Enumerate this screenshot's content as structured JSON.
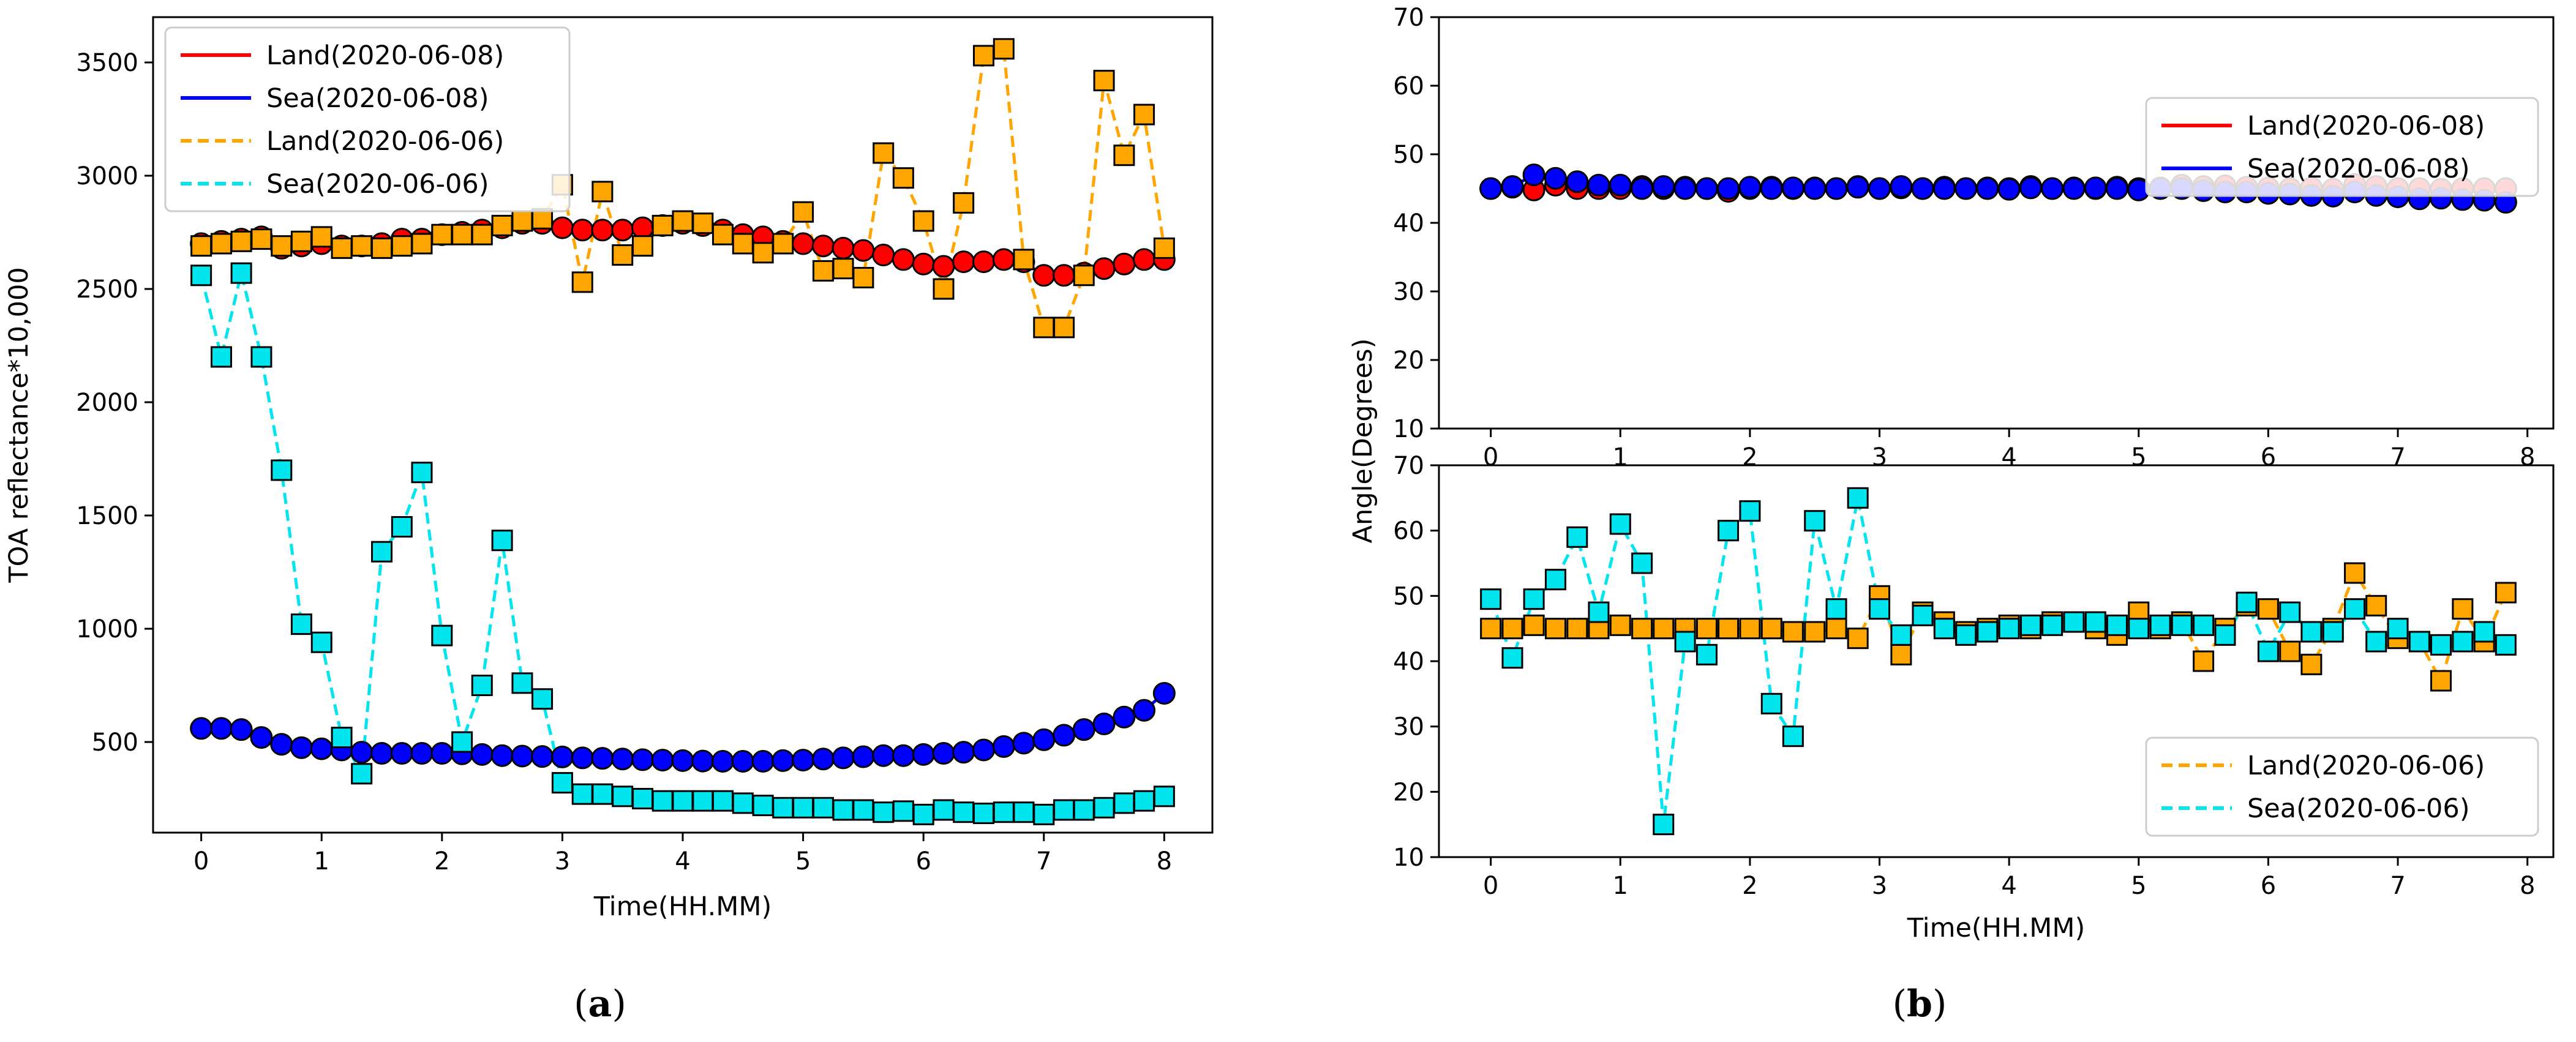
{
  "figure": {
    "caption_a": "(a)",
    "caption_b": "(b)",
    "caption_a_letter": "a",
    "caption_b_letter": "b"
  },
  "colors": {
    "land_0608": "#ff0000",
    "sea_0608": "#0000ff",
    "land_0606": "#ffa500",
    "sea_0606": "#00e5ee",
    "axis": "#000000"
  },
  "chart_data": [
    {
      "id": "a",
      "type": "line",
      "xlabel": "Time(HH.MM)",
      "ylabel": "TOA reflectance*10,000",
      "xlim": [
        -0.4,
        8.4
      ],
      "ylim": [
        100,
        3700
      ],
      "xticks": [
        0,
        1,
        2,
        3,
        4,
        5,
        6,
        7,
        8
      ],
      "yticks": [
        500,
        1000,
        1500,
        2000,
        2500,
        3000,
        3500
      ],
      "legend_position": "top-left",
      "series": [
        {
          "name": "Land(2020-06-08)",
          "color": "#ff0000",
          "dash": false,
          "marker": "circle",
          "x": [
            0,
            0.167,
            0.333,
            0.5,
            0.667,
            0.833,
            1,
            1.167,
            1.333,
            1.5,
            1.667,
            1.833,
            2,
            2.167,
            2.333,
            2.5,
            2.667,
            2.833,
            3,
            3.167,
            3.333,
            3.5,
            3.667,
            3.833,
            4,
            4.167,
            4.333,
            4.5,
            4.667,
            4.833,
            5,
            5.167,
            5.333,
            5.5,
            5.667,
            5.833,
            6,
            6.167,
            6.333,
            6.5,
            6.667,
            6.833,
            7,
            7.167,
            7.333,
            7.5,
            7.667,
            7.833,
            8
          ],
          "y": [
            2700,
            2710,
            2720,
            2730,
            2680,
            2690,
            2700,
            2690,
            2690,
            2700,
            2720,
            2720,
            2740,
            2750,
            2760,
            2770,
            2790,
            2790,
            2770,
            2760,
            2760,
            2760,
            2770,
            2780,
            2790,
            2780,
            2760,
            2740,
            2730,
            2710,
            2700,
            2690,
            2680,
            2670,
            2650,
            2630,
            2610,
            2600,
            2620,
            2620,
            2630,
            2620,
            2560,
            2560,
            2570,
            2590,
            2610,
            2630,
            2630
          ]
        },
        {
          "name": "Sea(2020-06-08)",
          "color": "#0000ff",
          "dash": false,
          "marker": "circle",
          "x": [
            0,
            0.167,
            0.333,
            0.5,
            0.667,
            0.833,
            1,
            1.167,
            1.333,
            1.5,
            1.667,
            1.833,
            2,
            2.167,
            2.333,
            2.5,
            2.667,
            2.833,
            3,
            3.167,
            3.333,
            3.5,
            3.667,
            3.833,
            4,
            4.167,
            4.333,
            4.5,
            4.667,
            4.833,
            5,
            5.167,
            5.333,
            5.5,
            5.667,
            5.833,
            6,
            6.167,
            6.333,
            6.5,
            6.667,
            6.833,
            7,
            7.167,
            7.333,
            7.5,
            7.667,
            7.833,
            8
          ],
          "y": [
            560,
            560,
            555,
            520,
            490,
            475,
            470,
            465,
            455,
            450,
            450,
            450,
            450,
            448,
            445,
            440,
            438,
            436,
            434,
            430,
            428,
            425,
            422,
            420,
            418,
            416,
            415,
            415,
            415,
            418,
            420,
            425,
            430,
            435,
            440,
            440,
            445,
            450,
            455,
            465,
            480,
            495,
            510,
            530,
            555,
            580,
            610,
            640,
            715
          ]
        },
        {
          "name": "Land(2020-06-06)",
          "color": "#ffa500",
          "dash": true,
          "marker": "square",
          "x": [
            0,
            0.167,
            0.333,
            0.5,
            0.667,
            0.833,
            1,
            1.167,
            1.333,
            1.5,
            1.667,
            1.833,
            2,
            2.167,
            2.333,
            2.5,
            2.667,
            2.833,
            3,
            3.167,
            3.333,
            3.5,
            3.667,
            3.833,
            4,
            4.167,
            4.333,
            4.5,
            4.667,
            4.833,
            5,
            5.167,
            5.333,
            5.5,
            5.667,
            5.833,
            6,
            6.167,
            6.333,
            6.5,
            6.667,
            6.833,
            7,
            7.167,
            7.333,
            7.5,
            7.667,
            7.833,
            8
          ],
          "y": [
            2690,
            2700,
            2710,
            2720,
            2690,
            2710,
            2730,
            2680,
            2690,
            2680,
            2690,
            2700,
            2740,
            2740,
            2740,
            2780,
            2800,
            2810,
            2960,
            2530,
            2930,
            2650,
            2690,
            2780,
            2800,
            2790,
            2740,
            2700,
            2660,
            2700,
            2840,
            2580,
            2590,
            2550,
            3100,
            2990,
            2800,
            2500,
            2880,
            3530,
            3560,
            2630,
            2330,
            2330,
            2560,
            3420,
            3090,
            3270,
            2680
          ]
        },
        {
          "name": "Sea(2020-06-06)",
          "color": "#00e5ee",
          "dash": true,
          "marker": "square",
          "x": [
            0,
            0.167,
            0.333,
            0.5,
            0.667,
            0.833,
            1,
            1.167,
            1.333,
            1.5,
            1.667,
            1.833,
            2,
            2.167,
            2.333,
            2.5,
            2.667,
            2.833,
            3,
            3.167,
            3.333,
            3.5,
            3.667,
            3.833,
            4,
            4.167,
            4.333,
            4.5,
            4.667,
            4.833,
            5,
            5.167,
            5.333,
            5.5,
            5.667,
            5.833,
            6,
            6.167,
            6.333,
            6.5,
            6.667,
            6.833,
            7,
            7.167,
            7.333,
            7.5,
            7.667,
            7.833,
            8
          ],
          "y": [
            2560,
            2200,
            2570,
            2200,
            1700,
            1020,
            940,
            520,
            360,
            1340,
            1450,
            1690,
            970,
            500,
            750,
            1390,
            760,
            690,
            320,
            270,
            270,
            260,
            250,
            240,
            240,
            240,
            240,
            230,
            220,
            210,
            210,
            210,
            200,
            200,
            190,
            195,
            180,
            200,
            190,
            185,
            190,
            190,
            180,
            200,
            200,
            210,
            230,
            240,
            260
          ]
        }
      ]
    },
    {
      "id": "b-top",
      "type": "line",
      "xlabel": "",
      "ylabel": "Angle(Degrees)",
      "xlim": [
        -0.4,
        8.2
      ],
      "ylim": [
        10,
        70
      ],
      "xticks": [
        0,
        1,
        2,
        3,
        4,
        5,
        6,
        7,
        8
      ],
      "yticks": [
        10,
        20,
        30,
        40,
        50,
        60,
        70
      ],
      "legend_position": "top-right",
      "series": [
        {
          "name": "Land(2020-06-08)",
          "color": "#ff0000",
          "dash": false,
          "marker": "circle",
          "x": [
            0,
            0.167,
            0.333,
            0.5,
            0.667,
            0.833,
            1,
            1.167,
            1.333,
            1.5,
            1.667,
            1.833,
            2,
            2.167,
            2.333,
            2.5,
            2.667,
            2.833,
            3,
            3.167,
            3.333,
            3.5,
            3.667,
            3.833,
            4,
            4.167,
            4.333,
            4.5,
            4.667,
            4.833,
            5,
            5.167,
            5.333,
            5.5,
            5.667,
            5.833,
            6,
            6.167,
            6.333,
            6.5,
            6.667,
            6.833,
            7,
            7.167,
            7.333,
            7.5,
            7.667,
            7.833
          ],
          "y": [
            45,
            45.2,
            44.8,
            45.5,
            45,
            45,
            45,
            45.3,
            45,
            45.2,
            45,
            44.6,
            45,
            45.2,
            45,
            45.1,
            45,
            45.3,
            45,
            45.1,
            45,
            45.2,
            45,
            45.1,
            45,
            45.3,
            45,
            45.1,
            45,
            45.2,
            45,
            45.1,
            45.5,
            45.3,
            45.4,
            45.2,
            45.1,
            45,
            45.1,
            44.9,
            45.6,
            45.3,
            45,
            45,
            44.9,
            45,
            45,
            45
          ]
        },
        {
          "name": "Sea(2020-06-08)",
          "color": "#0000ff",
          "dash": false,
          "marker": "circle",
          "x": [
            0,
            0.167,
            0.333,
            0.5,
            0.667,
            0.833,
            1,
            1.167,
            1.333,
            1.5,
            1.667,
            1.833,
            2,
            2.167,
            2.333,
            2.5,
            2.667,
            2.833,
            3,
            3.167,
            3.333,
            3.5,
            3.667,
            3.833,
            4,
            4.167,
            4.333,
            4.5,
            4.667,
            4.833,
            5,
            5.167,
            5.333,
            5.5,
            5.667,
            5.833,
            6,
            6.167,
            6.333,
            6.5,
            6.667,
            6.833,
            7,
            7.167,
            7.333,
            7.5,
            7.667,
            7.833
          ],
          "y": [
            45,
            45.3,
            47,
            46.5,
            46,
            45.5,
            45.5,
            45,
            45.3,
            45,
            45,
            45,
            45.2,
            45,
            45.1,
            45,
            45,
            45.2,
            45,
            45.3,
            45,
            45,
            45,
            45,
            44.9,
            45.1,
            45,
            45,
            45.1,
            45,
            44.8,
            45,
            45,
            44.7,
            44.5,
            44.5,
            44.3,
            44.2,
            44,
            43.9,
            44.5,
            44,
            43.8,
            43.5,
            43.6,
            43.4,
            43.3,
            43
          ]
        }
      ]
    },
    {
      "id": "b-bottom",
      "type": "line",
      "xlabel": "Time(HH.MM)",
      "ylabel": "Angle(Degrees)",
      "xlim": [
        -0.4,
        8.2
      ],
      "ylim": [
        10,
        70
      ],
      "xticks": [
        0,
        1,
        2,
        3,
        4,
        5,
        6,
        7,
        8
      ],
      "yticks": [
        10,
        20,
        30,
        40,
        50,
        60,
        70
      ],
      "legend_position": "bottom-right",
      "series": [
        {
          "name": "Land(2020-06-06)",
          "color": "#ffa500",
          "dash": true,
          "marker": "square",
          "x": [
            0,
            0.167,
            0.333,
            0.5,
            0.667,
            0.833,
            1,
            1.167,
            1.333,
            1.5,
            1.667,
            1.833,
            2,
            2.167,
            2.333,
            2.5,
            2.667,
            2.833,
            3,
            3.167,
            3.333,
            3.5,
            3.667,
            3.833,
            4,
            4.167,
            4.333,
            4.5,
            4.667,
            4.833,
            5,
            5.167,
            5.333,
            5.5,
            5.667,
            5.833,
            6,
            6.167,
            6.333,
            6.5,
            6.667,
            6.833,
            7,
            7.167,
            7.333,
            7.5,
            7.667,
            7.833
          ],
          "y": [
            45,
            45,
            45.5,
            45,
            45,
            45,
            45.5,
            45,
            45,
            45,
            45,
            45,
            45,
            45,
            44.5,
            44.5,
            45,
            43.5,
            50,
            41,
            47.5,
            46,
            44.5,
            45,
            45.5,
            45,
            46,
            46,
            45,
            44,
            47.5,
            45,
            46,
            40,
            45,
            48.5,
            48,
            41.5,
            39.5,
            45,
            53.5,
            48.5,
            43.5,
            43,
            37,
            48,
            43,
            50.5
          ]
        },
        {
          "name": "Sea(2020-06-06)",
          "color": "#00e5ee",
          "dash": true,
          "marker": "square",
          "x": [
            0,
            0.167,
            0.333,
            0.5,
            0.667,
            0.833,
            1,
            1.167,
            1.333,
            1.5,
            1.667,
            1.833,
            2,
            2.167,
            2.333,
            2.5,
            2.667,
            2.833,
            3,
            3.167,
            3.333,
            3.5,
            3.667,
            3.833,
            4,
            4.167,
            4.333,
            4.5,
            4.667,
            4.833,
            5,
            5.167,
            5.333,
            5.5,
            5.667,
            5.833,
            6,
            6.167,
            6.333,
            6.5,
            6.667,
            6.833,
            7,
            7.167,
            7.333,
            7.5,
            7.667,
            7.833
          ],
          "y": [
            49.5,
            40.5,
            49.5,
            52.5,
            59,
            47.5,
            61,
            55,
            15,
            43,
            41,
            60,
            63,
            33.5,
            28.5,
            61.5,
            48,
            65,
            48,
            44,
            47,
            45,
            44,
            44.5,
            45,
            45.5,
            45.5,
            46,
            46,
            45.5,
            45,
            45.5,
            45.5,
            45.5,
            44,
            49,
            41.5,
            47.5,
            44.5,
            44.5,
            48,
            43,
            45,
            43,
            42.5,
            43,
            44.5,
            42.5
          ]
        }
      ]
    }
  ]
}
